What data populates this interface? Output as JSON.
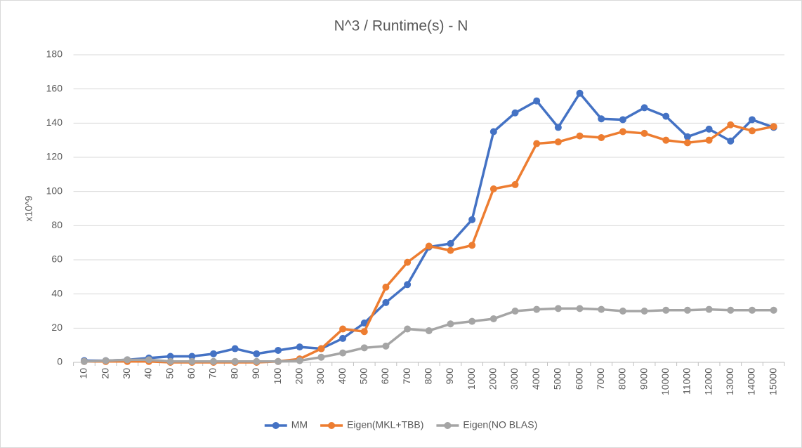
{
  "chart_data": {
    "type": "line",
    "title": "N^3 / Runtime(s) - N",
    "y_label": "x10^9",
    "categories": [
      "10",
      "20",
      "30",
      "40",
      "50",
      "60",
      "70",
      "80",
      "90",
      "100",
      "200",
      "300",
      "400",
      "500",
      "600",
      "700",
      "800",
      "900",
      "1000",
      "2000",
      "3000",
      "4000",
      "5000",
      "6000",
      "7000",
      "8000",
      "9000",
      "10000",
      "11000",
      "12000",
      "13000",
      "14000",
      "15000"
    ],
    "series": [
      {
        "name": "MM",
        "color": "#4472c4",
        "values": [
          1,
          1,
          1.5,
          2.5,
          3.5,
          3.5,
          5,
          8,
          5,
          7,
          9,
          8,
          14,
          23,
          35,
          45.5,
          67.5,
          69.5,
          83.5,
          135,
          146,
          153,
          137.5,
          157.5,
          142.5,
          142,
          149,
          144,
          132,
          136.5,
          129.5,
          142,
          137.5
        ]
      },
      {
        "name": "Eigen(MKL+TBB)",
        "color": "#ed7d31",
        "values": [
          0.5,
          0.5,
          0.5,
          0.5,
          0,
          0,
          0,
          0,
          0,
          0.5,
          2,
          8,
          19.5,
          18,
          44,
          58.5,
          68,
          65.5,
          68.5,
          101.5,
          104,
          128,
          129,
          132.5,
          131.5,
          135,
          134,
          130,
          128.5,
          130,
          139,
          135.5,
          138
        ]
      },
      {
        "name": "Eigen(NO BLAS)",
        "color": "#a5a5a5",
        "values": [
          0.5,
          1,
          1.5,
          1.5,
          0.5,
          0.5,
          0.5,
          0.5,
          0.5,
          0.5,
          1,
          3,
          5.5,
          8.5,
          9.5,
          19.5,
          18.5,
          22.5,
          24,
          25.5,
          30,
          31,
          31.5,
          31.5,
          31,
          30,
          30,
          30.5,
          30.5,
          31,
          30.5,
          30.5,
          30.5
        ]
      }
    ],
    "ylim": [
      0,
      180
    ],
    "yticks": [
      0,
      20,
      40,
      60,
      80,
      100,
      120,
      140,
      160,
      180
    ],
    "grid": true,
    "legend": "bottom"
  }
}
